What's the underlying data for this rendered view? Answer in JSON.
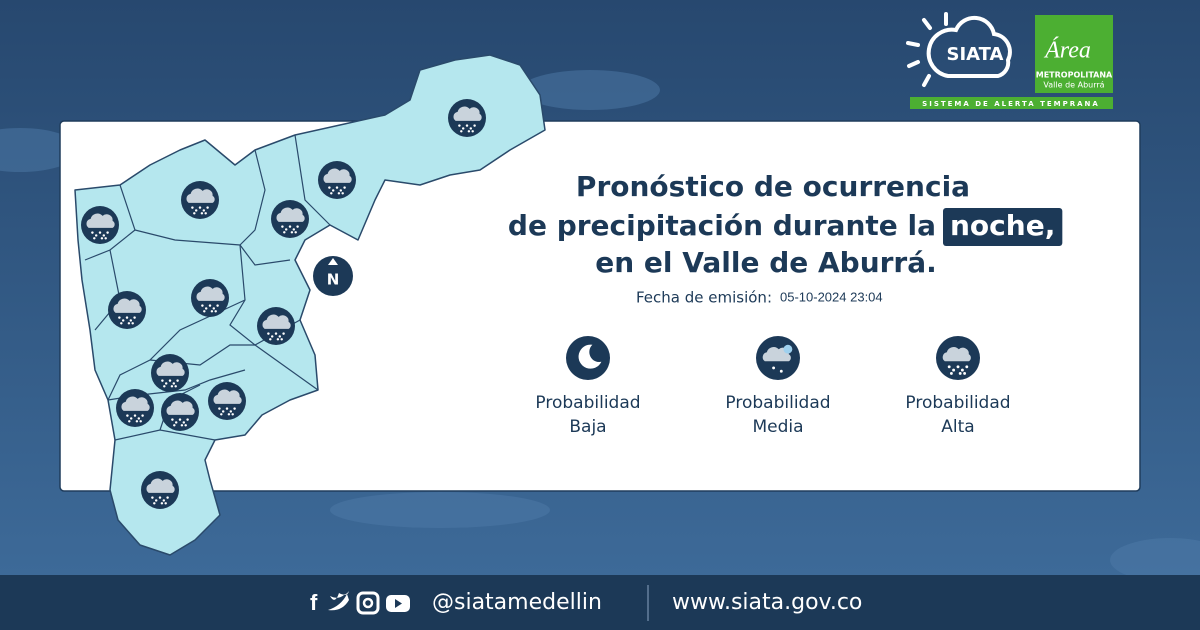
{
  "header": {
    "siata": "SIATA",
    "area": "Área",
    "metropolitana": "METROPOLITANA",
    "valle": "Valle de Aburrá",
    "tagline": "SISTEMA DE ALERTA TEMPRANA"
  },
  "map": {
    "north": "N"
  },
  "title": {
    "lines": [
      "Pronóstico de ocurrencia",
      "de precipitación durante la",
      "en el Valle de Aburrá."
    ],
    "highlight": "noche,"
  },
  "issue": {
    "label": "Fecha de emisión:",
    "value": "05-10-2024 23:04"
  },
  "legend": [
    {
      "lines": [
        "Probabilidad",
        "Baja"
      ]
    },
    {
      "lines": [
        "Probabilidad",
        "Media"
      ]
    },
    {
      "lines": [
        "Probabilidad",
        "Alta"
      ]
    }
  ],
  "footer": {
    "handle": "@siatamedellin",
    "url": "www.siata.gov.co"
  }
}
